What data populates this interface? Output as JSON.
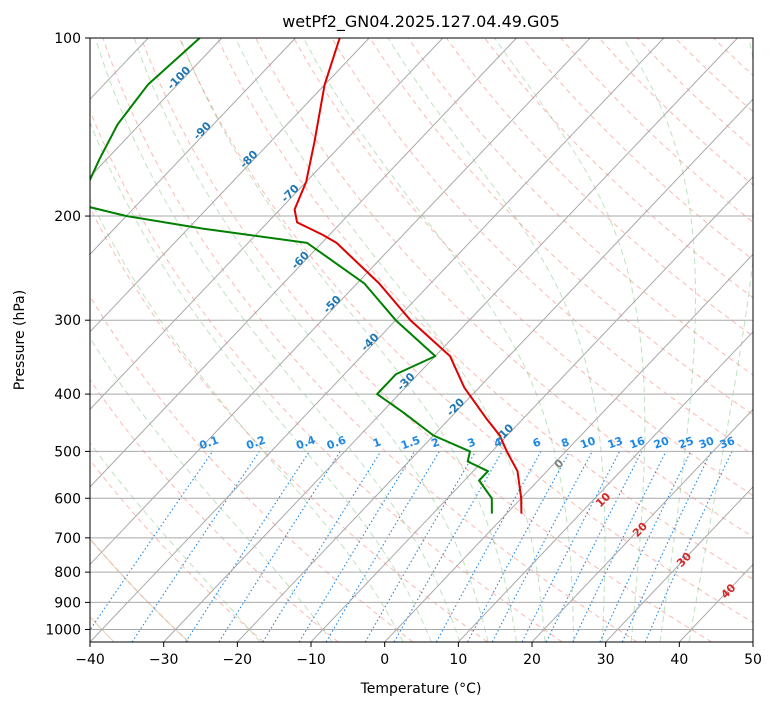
{
  "chart_data": {
    "type": "line",
    "title": "wetPf2_GN04.2025.127.04.49.G05",
    "xlabel": "Temperature (°C)",
    "ylabel": "Pressure (hPa)",
    "xlim": [
      -40,
      50
    ],
    "ylim": [
      1050,
      100
    ],
    "y_scale": "log",
    "skew": "skew-T log-p",
    "grid": true,
    "x_ticks": [
      "−40",
      "−30",
      "−20",
      "−10",
      "0",
      "10",
      "20",
      "30",
      "40",
      "50"
    ],
    "y_ticks": [
      "100",
      "200",
      "300",
      "400",
      "500",
      "600",
      "700",
      "800",
      "900",
      "1000"
    ],
    "series": [
      {
        "color": "#e00000",
        "points": [
          {
            "p": 100,
            "t": -84
          },
          {
            "p": 120,
            "t": -80
          },
          {
            "p": 150,
            "t": -74
          },
          {
            "p": 175,
            "t": -70
          },
          {
            "p": 195,
            "t": -68
          },
          {
            "p": 205,
            "t": -66
          },
          {
            "p": 215,
            "t": -61
          },
          {
            "p": 222,
            "t": -58
          },
          {
            "p": 260,
            "t": -47
          },
          {
            "p": 300,
            "t": -38
          },
          {
            "p": 345,
            "t": -28
          },
          {
            "p": 390,
            "t": -22
          },
          {
            "p": 440,
            "t": -15
          },
          {
            "p": 470,
            "t": -11
          },
          {
            "p": 500,
            "t": -8
          },
          {
            "p": 540,
            "t": -4
          },
          {
            "p": 600,
            "t": 0
          },
          {
            "p": 637,
            "t": 2
          }
        ]
      },
      {
        "color": "#008000",
        "points": [
          {
            "p": 100,
            "t": -103
          },
          {
            "p": 120,
            "t": -104
          },
          {
            "p": 140,
            "t": -103
          },
          {
            "p": 160,
            "t": -101
          },
          {
            "p": 180,
            "t": -99
          },
          {
            "p": 190,
            "t": -99
          },
          {
            "p": 200,
            "t": -90
          },
          {
            "p": 210,
            "t": -78
          },
          {
            "p": 222,
            "t": -62
          },
          {
            "p": 260,
            "t": -49
          },
          {
            "p": 300,
            "t": -40
          },
          {
            "p": 345,
            "t": -30
          },
          {
            "p": 370,
            "t": -33
          },
          {
            "p": 400,
            "t": -33
          },
          {
            "p": 430,
            "t": -27
          },
          {
            "p": 470,
            "t": -20
          },
          {
            "p": 500,
            "t": -13
          },
          {
            "p": 520,
            "t": -12
          },
          {
            "p": 540,
            "t": -8
          },
          {
            "p": 560,
            "t": -8
          },
          {
            "p": 600,
            "t": -4
          },
          {
            "p": 637,
            "t": -2
          }
        ]
      }
    ],
    "isotherm_labels": [
      "-100",
      "-90",
      "-80",
      "-70",
      "-60",
      "-50",
      "-40",
      "-30",
      "-20",
      "-10"
    ],
    "mixing_ratio_labels": [
      "0.1",
      "0.2",
      "0.4",
      "0.6",
      "1",
      "1.5",
      "2",
      "3",
      "4",
      "6",
      "8",
      "10",
      "13",
      "16",
      "20",
      "25",
      "30",
      "36"
    ],
    "moist_adiabat_labels": [
      "0",
      "10",
      "20",
      "30",
      "40"
    ],
    "colors": {
      "temperature": "#e00000",
      "dewpoint": "#008000",
      "isotherm_label": "#1f77b4",
      "mixing_ratio": "#1e88e5",
      "dry_adiabat": "#fa8072",
      "moist_adiabat": "#2ca02c",
      "moist_label_zero": "#808080",
      "moist_label": "#d62728",
      "isobar": "#a9a9a9",
      "isotherm": "#a9a9a9"
    }
  }
}
